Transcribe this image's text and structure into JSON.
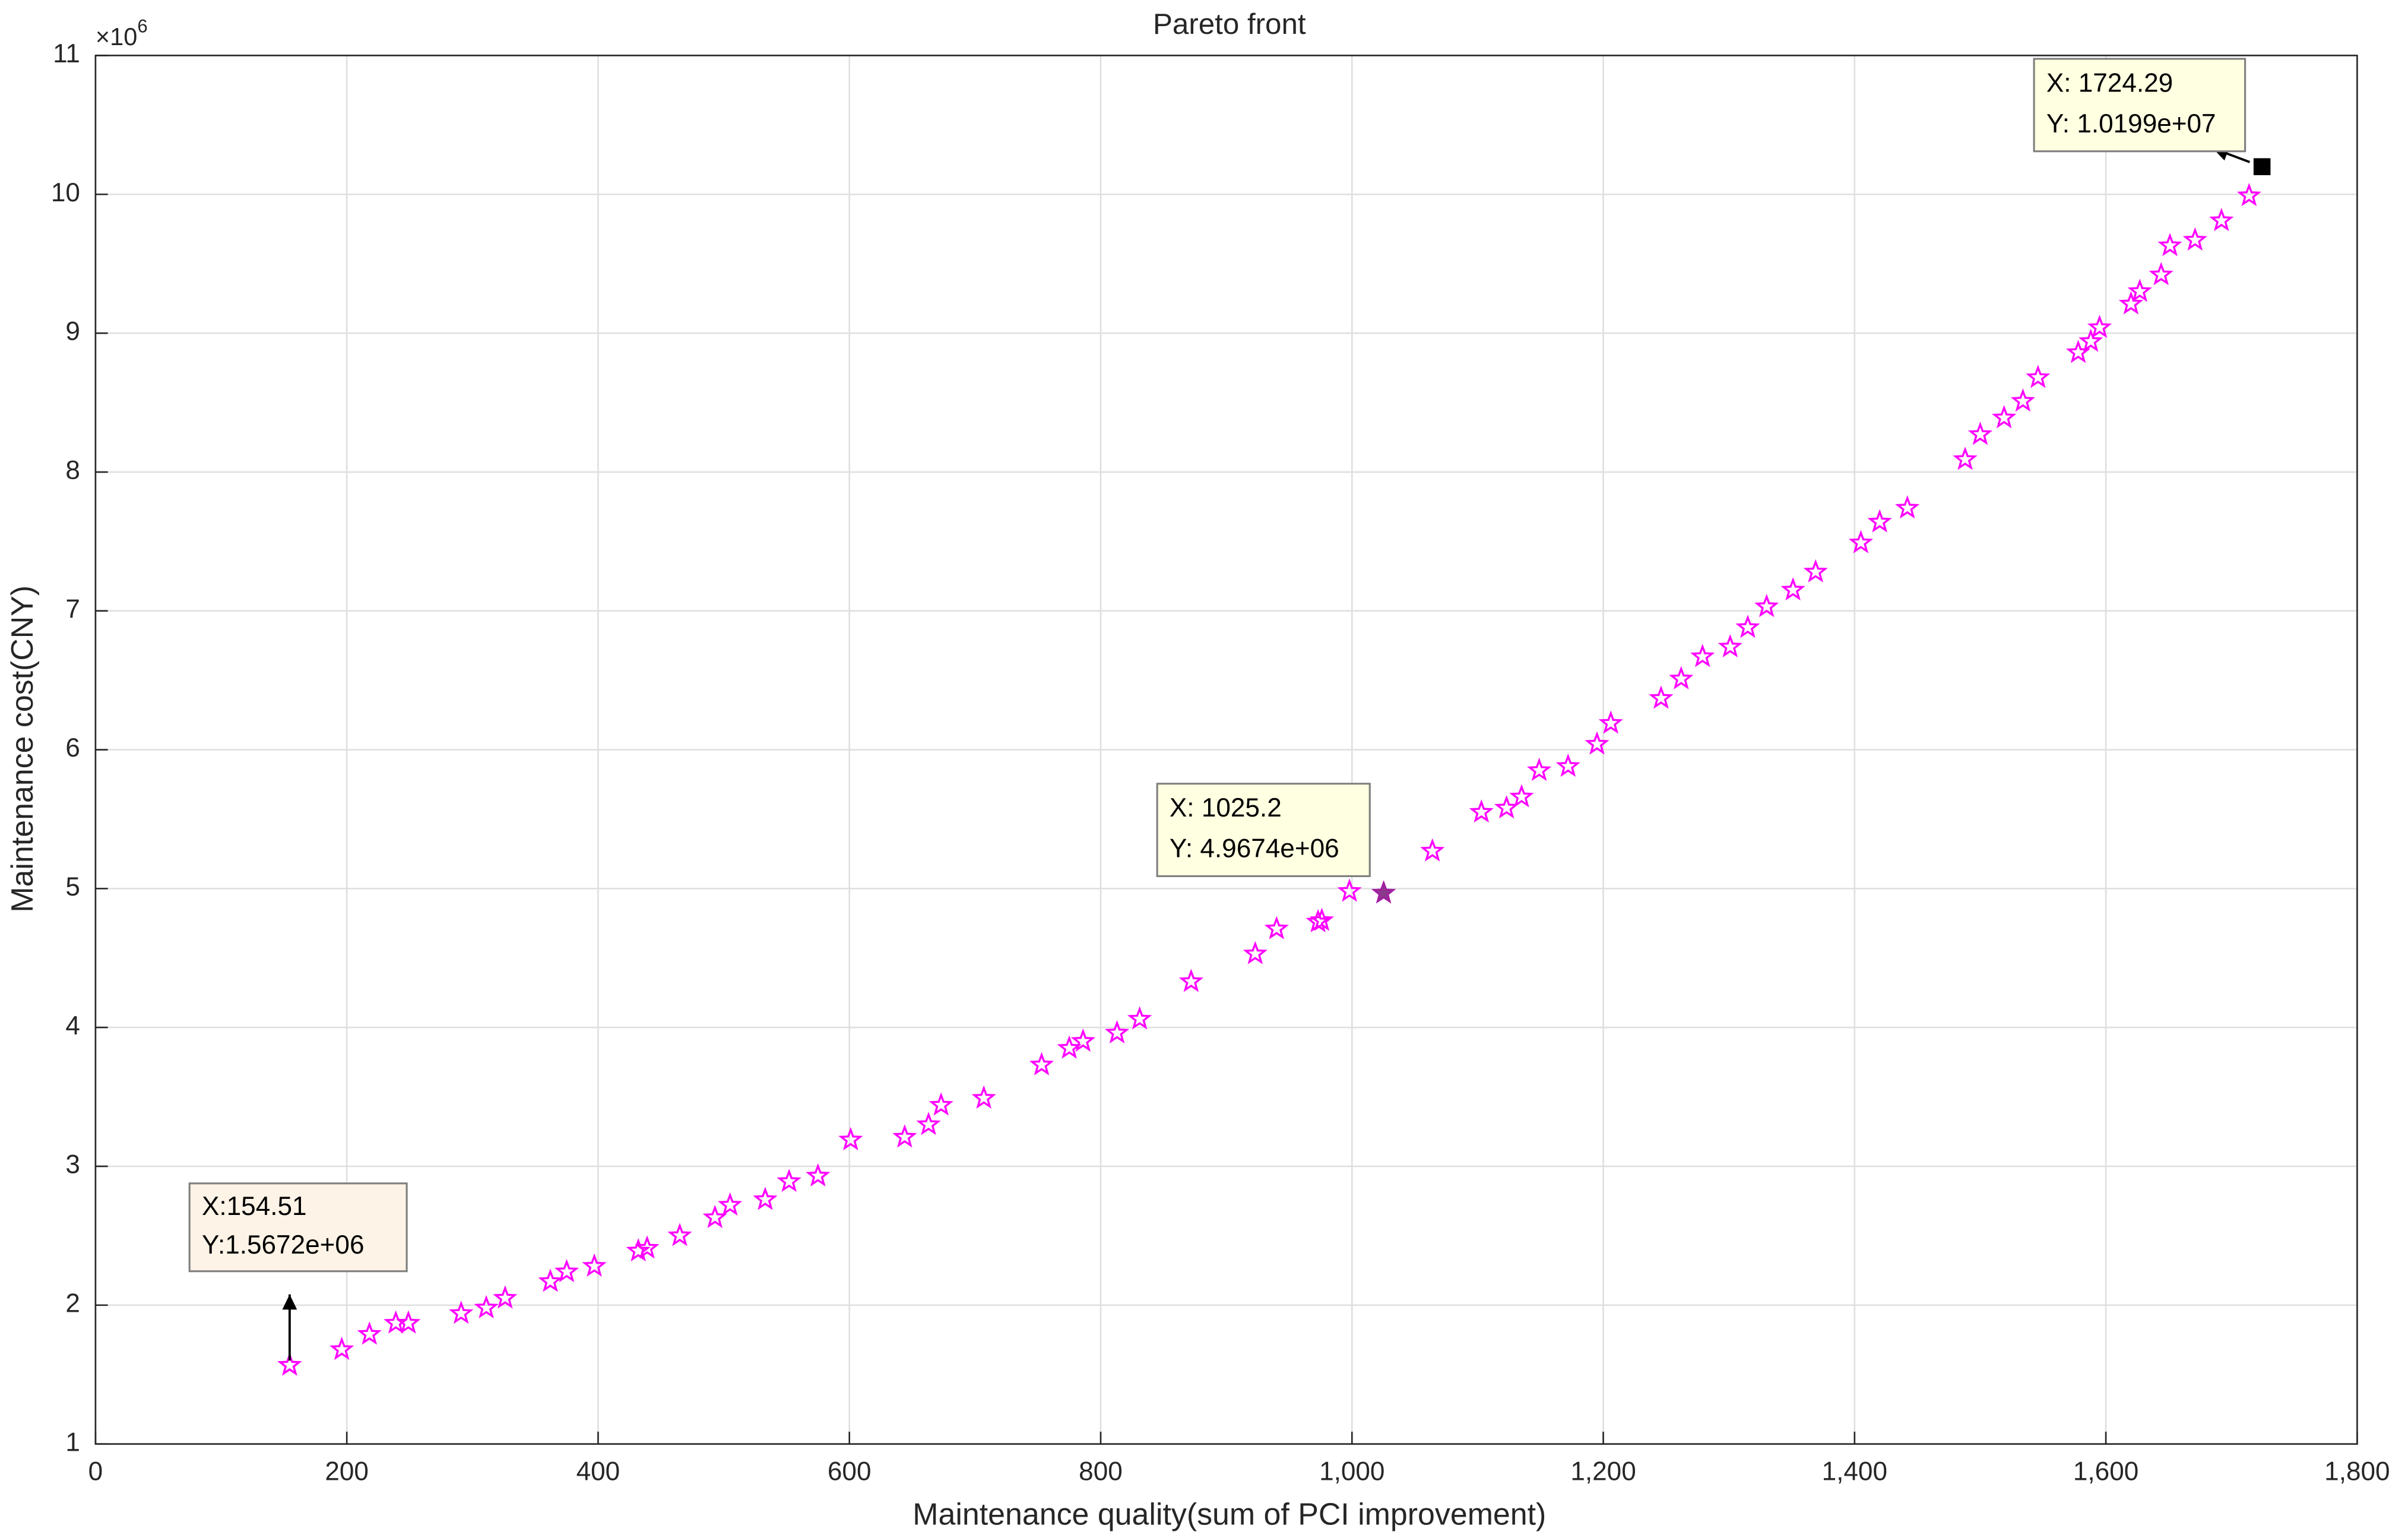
{
  "chart_data": {
    "type": "scatter",
    "title": "Pareto front",
    "x_label": "Maintenance quality(sum of PCI improvement)",
    "y_label": "Maintenance cost(CNY)",
    "y_multiplier_base": "×10",
    "y_multiplier_exponent": "6",
    "xlim": [
      0,
      1800
    ],
    "ylim": [
      1,
      11
    ],
    "xticks": [
      0,
      200,
      400,
      600,
      800,
      {
        "value": 1000,
        "label": "1,000"
      },
      {
        "value": 1200,
        "label": "1,200"
      },
      {
        "value": 1400,
        "label": "1,400"
      },
      {
        "value": 1600,
        "label": "1,600"
      },
      {
        "value": 1800,
        "label": "1,800"
      }
    ],
    "yticks": [
      1,
      2,
      3,
      4,
      5,
      6,
      7,
      8,
      9,
      10,
      11
    ],
    "grid": true,
    "series": [
      {
        "color": "#ff00ff",
        "marker": "star",
        "x": [
          154.51,
          196,
          218,
          239,
          249,
          291,
          311,
          326,
          362,
          375,
          397,
          432,
          439,
          465,
          493,
          505,
          533,
          552,
          575,
          601,
          644,
          663,
          673,
          707,
          753,
          775,
          786,
          813,
          831,
          872,
          923,
          940,
          973,
          976,
          998,
          1025.2,
          1064,
          1103,
          1123,
          1135,
          1149,
          1172,
          1195,
          1206,
          1246,
          1262,
          1279,
          1301,
          1315,
          1330,
          1351,
          1369,
          1405,
          1420,
          1442,
          1488,
          1500,
          1519,
          1534,
          1546,
          1578,
          1588,
          1595,
          1620,
          1627,
          1644,
          1651,
          1671,
          1692,
          1714
        ],
        "values": [
          1.5672,
          1.68,
          1.79,
          1.87,
          1.87,
          1.94,
          1.98,
          2.05,
          2.17,
          2.24,
          2.28,
          2.39,
          2.41,
          2.5,
          2.63,
          2.72,
          2.76,
          2.89,
          2.93,
          3.19,
          3.21,
          3.3,
          3.44,
          3.49,
          3.73,
          3.85,
          3.9,
          3.96,
          4.06,
          4.33,
          4.53,
          4.71,
          4.76,
          4.77,
          4.98,
          4.9674,
          5.27,
          5.55,
          5.58,
          5.66,
          5.85,
          5.88,
          6.04,
          6.19,
          6.37,
          6.51,
          6.67,
          6.74,
          6.88,
          7.03,
          7.15,
          7.28,
          7.49,
          7.64,
          7.74,
          8.09,
          8.27,
          8.39,
          8.51,
          8.68,
          8.86,
          8.94,
          9.04,
          9.21,
          9.3,
          9.42,
          9.63,
          9.67,
          9.81,
          9.99
        ]
      }
    ],
    "datatips": [
      {
        "x": 154.51,
        "y": 1.5672,
        "marker": "star",
        "line_x": "X:154.51",
        "line_y": "Y:1.5672e+06"
      },
      {
        "x": 1025.2,
        "y": 4.9674,
        "marker": "filled-star",
        "line_x": "X: 1025.2",
        "line_y": "Y: 4.9674e+06"
      },
      {
        "x": 1724.29,
        "y": 10.199,
        "marker": "square",
        "line_x": "X: 1724.29",
        "line_y": "Y: 1.0199e+07"
      }
    ]
  }
}
